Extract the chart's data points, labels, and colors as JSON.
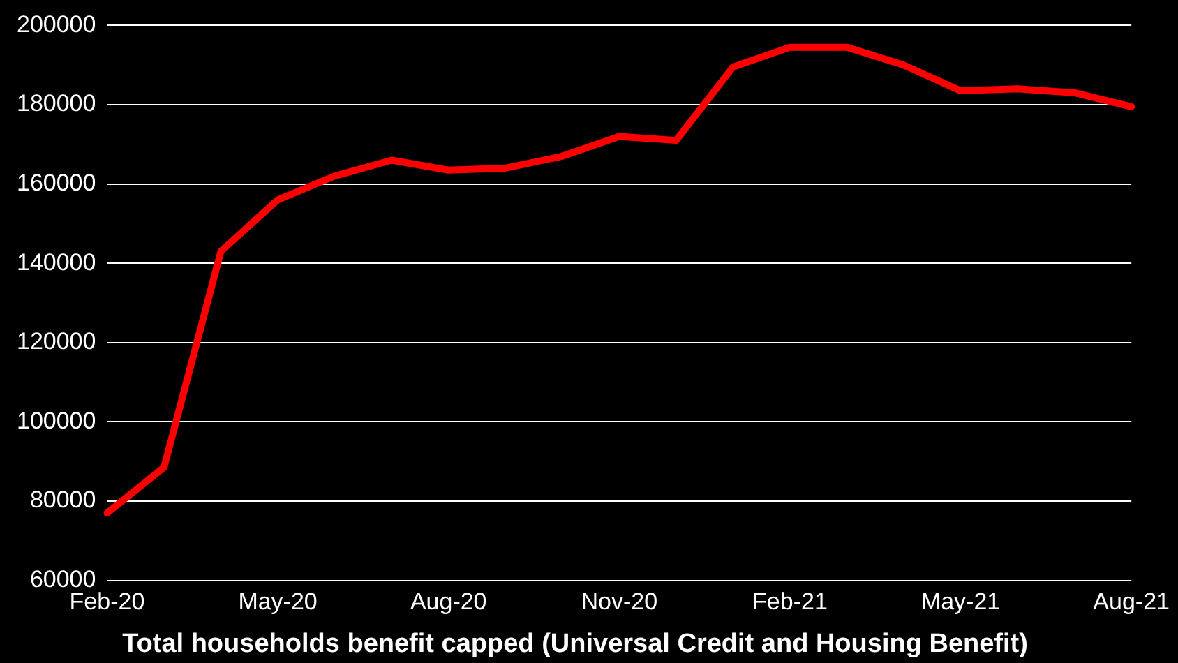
{
  "chart_data": {
    "type": "line",
    "title": "Total households benefit capped (Universal Credit and Housing Benefit)",
    "categories": [
      "Feb-20",
      null,
      null,
      "May-20",
      null,
      null,
      "Aug-20",
      null,
      null,
      "Nov-20",
      null,
      null,
      "Feb-21",
      null,
      null,
      "May-21",
      null,
      null,
      "Aug-21"
    ],
    "series": [
      {
        "color": "#ff0000",
        "values": [
          77000,
          88500,
          143000,
          156000,
          162000,
          166000,
          163500,
          164000,
          167000,
          172000,
          171000,
          189500,
          194500,
          194500,
          190000,
          183500,
          184000,
          183000,
          179500
        ]
      }
    ],
    "ylim": [
      60000,
      200000
    ],
    "yticks": [
      60000,
      80000,
      100000,
      120000,
      140000,
      160000,
      180000,
      200000
    ],
    "grid": "y",
    "legend": false,
    "marker": "none",
    "line_style": "solid"
  }
}
